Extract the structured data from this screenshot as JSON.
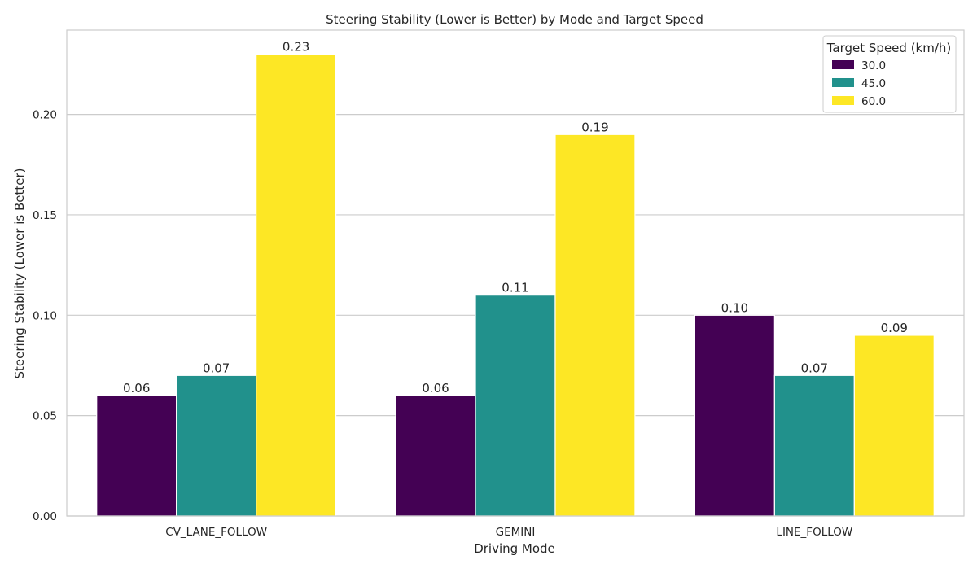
{
  "chart_data": {
    "type": "bar",
    "title": "Steering Stability (Lower is Better) by Mode and Target Speed",
    "xlabel": "Driving Mode",
    "ylabel": "Steering Stability (Lower is Better)",
    "categories": [
      "CV_LANE_FOLLOW",
      "GEMINI",
      "LINE_FOLLOW"
    ],
    "series": [
      {
        "name": "30.0",
        "color": "#440154",
        "values": [
          0.06,
          0.06,
          0.1
        ],
        "labels": [
          "0.06",
          "0.06",
          "0.10"
        ]
      },
      {
        "name": "45.0",
        "color": "#21918c",
        "values": [
          0.07,
          0.11,
          0.07
        ],
        "labels": [
          "0.07",
          "0.11",
          "0.07"
        ]
      },
      {
        "name": "60.0",
        "color": "#fde725",
        "values": [
          0.23,
          0.19,
          0.09
        ],
        "labels": [
          "0.23",
          "0.19",
          "0.09"
        ]
      }
    ],
    "ylim": [
      0,
      0.242
    ],
    "yticks": [
      0,
      0.05,
      0.1,
      0.15,
      0.2
    ],
    "ytick_labels": [
      "0.00",
      "0.05",
      "0.10",
      "0.15",
      "0.20"
    ],
    "grid": "horizontal",
    "legend": {
      "title": "Target Speed (km/h)",
      "placement": "top-right"
    }
  }
}
